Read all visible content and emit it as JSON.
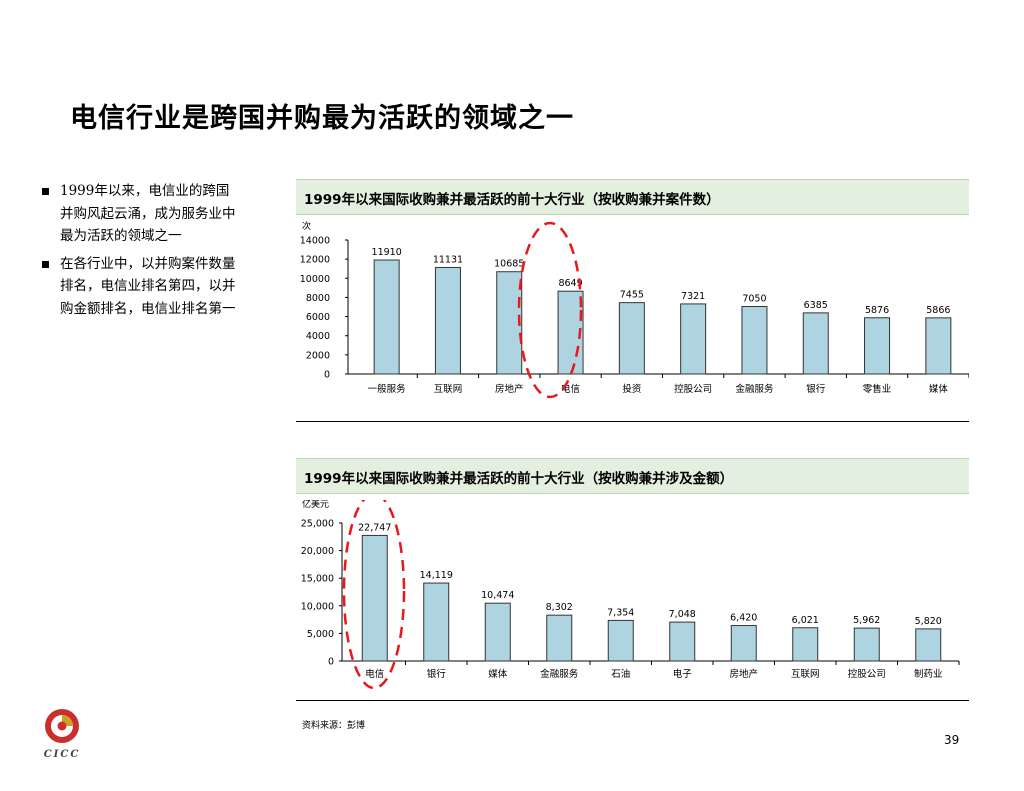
{
  "page": {
    "title": "电信行业是跨国并购最为活跃的领域之一",
    "bullets": [
      "1999年以来，电信业的跨国并购风起云涌，成为服务业中最为活跃的领域之一",
      "在各行业中，以并购案件数量排名，电信业排名第四，以并购金额排名，电信业排名第一"
    ],
    "source": "资料来源：彭博",
    "page_number": "39",
    "logo_text": "CICC",
    "colors": {
      "bar_fill": "#aed4e2",
      "bar_stroke": "#333333",
      "header_bg": "#e3efdf",
      "highlight": "#e8191c"
    }
  },
  "chart_data": [
    {
      "type": "bar",
      "title": "1999年以来国际收购兼并最活跃的前十大行业（按收购兼并案件数）",
      "ylabel": "次",
      "categories": [
        "一般服务",
        "互联网",
        "房地产",
        "电信",
        "投资",
        "控股公司",
        "金融服务",
        "银行",
        "零售业",
        "媒体"
      ],
      "values": [
        11910,
        11131,
        10685,
        8649,
        7455,
        7321,
        7050,
        6385,
        5876,
        5866
      ],
      "value_labels": [
        "11910",
        "11131",
        "10685",
        "8649",
        "7455",
        "7321",
        "7050",
        "6385",
        "5876",
        "5866"
      ],
      "ylim": [
        0,
        14000
      ],
      "yticks": [
        0,
        2000,
        4000,
        6000,
        8000,
        10000,
        12000,
        14000
      ],
      "ytick_labels": [
        "0",
        "2000",
        "4000",
        "6000",
        "8000",
        "10000",
        "12000",
        "14000"
      ],
      "highlight_category": "电信",
      "grid": false,
      "legend": "none"
    },
    {
      "type": "bar",
      "title": "1999年以来国际收购兼并最活跃的前十大行业（按收购兼并涉及金额）",
      "ylabel": "亿美元",
      "categories": [
        "电信",
        "银行",
        "媒体",
        "金融服务",
        "石油",
        "电子",
        "房地产",
        "互联网",
        "控股公司",
        "制药业"
      ],
      "values": [
        22747,
        14119,
        10474,
        8302,
        7354,
        7048,
        6420,
        6021,
        5962,
        5820
      ],
      "value_labels": [
        "22,747",
        "14,119",
        "10,474",
        "8,302",
        "7,354",
        "7,048",
        "6,420",
        "6,021",
        "5,962",
        "5,820"
      ],
      "ylim": [
        0,
        25000
      ],
      "yticks": [
        0,
        5000,
        10000,
        15000,
        20000,
        25000
      ],
      "ytick_labels": [
        "0",
        "5,000",
        "10,000",
        "15,000",
        "20,000",
        "25,000"
      ],
      "highlight_category": "电信",
      "grid": false,
      "legend": "none"
    }
  ]
}
